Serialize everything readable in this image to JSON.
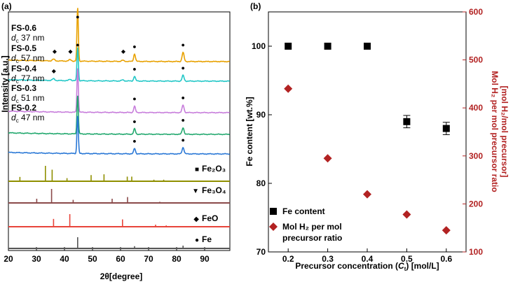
{
  "chart_data": [
    {
      "panel_label": "(a)",
      "type": "line",
      "xlabel": "2θ[degree]",
      "ylabel": "Intensity [a.u.]",
      "xlim": [
        20,
        99
      ],
      "xticks": [
        20,
        30,
        40,
        50,
        60,
        70,
        80,
        90
      ],
      "series": [
        {
          "name": "FS-0.6",
          "dc_value": "37 nm",
          "color": "#e8a100",
          "markers": [
            {
              "x": 44.7,
              "sym": "●"
            },
            {
              "x": 65.0,
              "sym": "●"
            },
            {
              "x": 82.3,
              "sym": "●"
            },
            {
              "x": 36.5,
              "sym": "◆"
            },
            {
              "x": 42.1,
              "sym": "◆"
            },
            {
              "x": 61.0,
              "sym": "◆"
            }
          ]
        },
        {
          "name": "FS-0.5",
          "dc_value": "57 nm",
          "color": "#22c7c7",
          "markers": [
            {
              "x": 65.0,
              "sym": "●"
            },
            {
              "x": 82.3,
              "sym": "●"
            },
            {
              "x": 36.2,
              "sym": "◆"
            }
          ]
        },
        {
          "name": "FS-0.4",
          "dc_value": "77 nm",
          "color": "#c77ddb",
          "markers": [
            {
              "x": 65.0,
              "sym": "●"
            },
            {
              "x": 82.3,
              "sym": "●"
            }
          ]
        },
        {
          "name": "FS-0.3",
          "dc_value": "51 nm",
          "color": "#22a86e",
          "markers": [
            {
              "x": 65.0,
              "sym": "●"
            },
            {
              "x": 82.3,
              "sym": "●"
            }
          ]
        },
        {
          "name": "FS-0.2",
          "dc_value": "47 nm",
          "color": "#2a78d6",
          "markers": [
            {
              "x": 65.0,
              "sym": "●"
            },
            {
              "x": 82.3,
              "sym": "●"
            }
          ]
        }
      ],
      "dc_prefix": "d",
      "dc_subscript": "c",
      "top_marker": {
        "x": 44.7,
        "sym": "●"
      },
      "references": [
        {
          "name": "Fe₂O₃",
          "sym": "■",
          "color": "#8f8f00",
          "peaks": [
            {
              "x": 24.1,
              "h": 0.28
            },
            {
              "x": 33.2,
              "h": 1.0
            },
            {
              "x": 35.6,
              "h": 0.75
            },
            {
              "x": 40.9,
              "h": 0.2
            },
            {
              "x": 49.5,
              "h": 0.4
            },
            {
              "x": 54.1,
              "h": 0.45
            },
            {
              "x": 62.4,
              "h": 0.3
            },
            {
              "x": 64.0,
              "h": 0.3
            },
            {
              "x": 71.9,
              "h": 0.1
            },
            {
              "x": 75.4,
              "h": 0.1
            }
          ]
        },
        {
          "name": "Fe₃O₄",
          "sym": "▼",
          "color": "#8a4a4a",
          "peaks": [
            {
              "x": 30.1,
              "h": 0.3
            },
            {
              "x": 35.4,
              "h": 1.0
            },
            {
              "x": 43.1,
              "h": 0.22
            },
            {
              "x": 57.0,
              "h": 0.3
            },
            {
              "x": 62.5,
              "h": 0.42
            },
            {
              "x": 74.0,
              "h": 0.08
            }
          ]
        },
        {
          "name": "FeO",
          "sym": "◆",
          "color": "#e8443a",
          "peaks": [
            {
              "x": 36.1,
              "h": 0.62
            },
            {
              "x": 41.9,
              "h": 1.0
            },
            {
              "x": 60.7,
              "h": 0.58
            },
            {
              "x": 72.5,
              "h": 0.16
            },
            {
              "x": 76.3,
              "h": 0.1
            }
          ]
        },
        {
          "name": "Fe",
          "sym": "●",
          "color": "#555555",
          "peaks": [
            {
              "x": 44.7,
              "h": 1.0
            },
            {
              "x": 65.0,
              "h": 0.2
            },
            {
              "x": 82.3,
              "h": 0.25
            }
          ]
        }
      ]
    },
    {
      "panel_label": "(b)",
      "type": "scatter",
      "categories": [
        "0.2",
        "0.3",
        "0.4",
        "0.5",
        "0.6"
      ],
      "x": [
        0.2,
        0.3,
        0.4,
        0.5,
        0.6
      ],
      "xlim": [
        0.15,
        0.65
      ],
      "xlabel": "Precursor concentration (Ct) [mol/L]",
      "xlabel_parts": {
        "before": "Precursor concentration (",
        "var": "C",
        "sub": "t",
        "after": ") [mol/L]"
      },
      "ylabel_left": "Fe content [wt.%]",
      "ylim_left": [
        70,
        105
      ],
      "yticks_left": [
        70,
        80,
        90,
        100
      ],
      "ylabel_right_line1": "Mol H₂ per mol precursor ratio",
      "ylabel_right_line2": "[mol H₂/mol precursor]",
      "ylim_right": [
        100,
        600
      ],
      "yticks_right": [
        100,
        200,
        300,
        400,
        500,
        600
      ],
      "series": [
        {
          "name": "Fe content",
          "axis": "left",
          "marker": "square",
          "color": "#000000",
          "values": [
            100,
            100,
            100,
            89,
            88
          ],
          "errors": [
            0,
            0,
            0,
            0.9,
            0.9
          ]
        },
        {
          "name": "Mol H₂ per mol precursor ratio",
          "axis": "right",
          "marker": "diamond",
          "color": "#b22222",
          "values": [
            440,
            295,
            220,
            178,
            145
          ]
        }
      ],
      "legend": {
        "placement": "bottom-left",
        "entries": [
          "Fe content",
          "Mol H₂ per mol",
          "precursor ratio"
        ]
      }
    }
  ]
}
